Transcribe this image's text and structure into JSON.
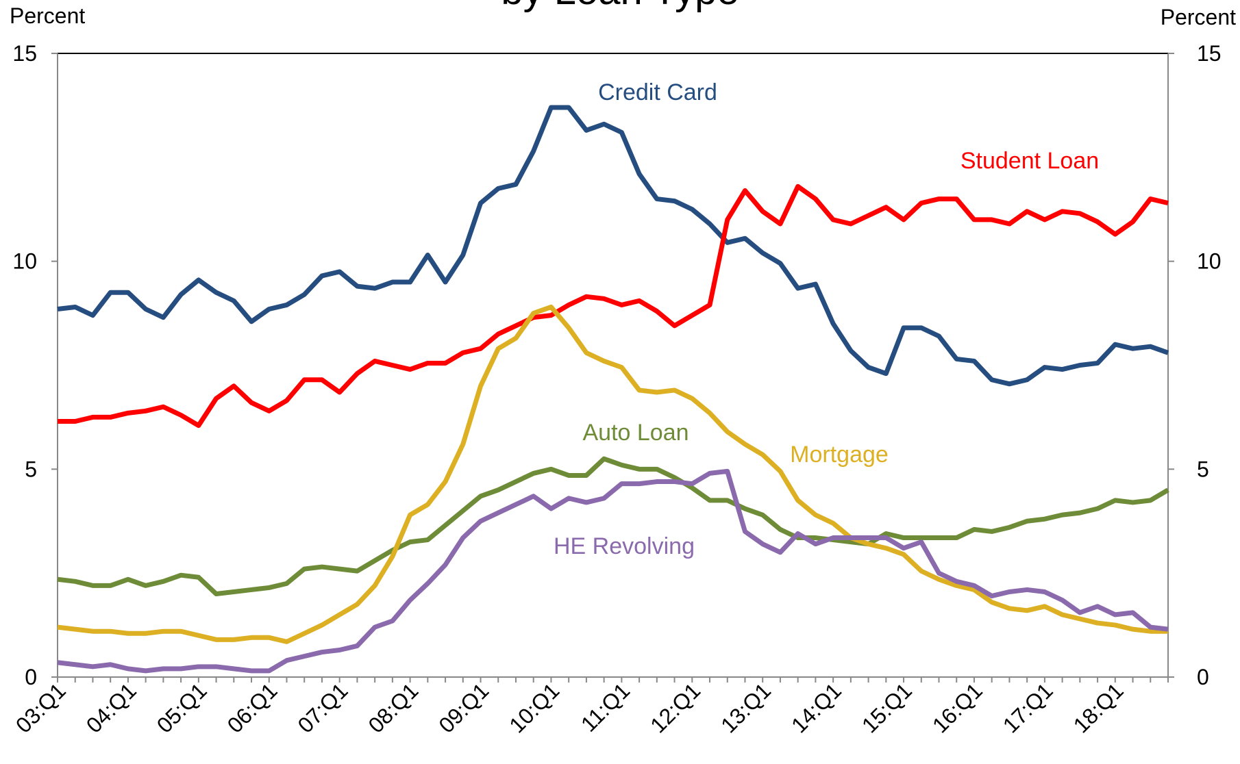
{
  "chart_data": {
    "type": "line",
    "title": "by Loan Type",
    "y_label": "Percent",
    "y2_label": "Percent",
    "categories": [
      "03:Q1",
      null,
      null,
      null,
      "04:Q1",
      null,
      null,
      null,
      "05:Q1",
      null,
      null,
      null,
      "06:Q1",
      null,
      null,
      null,
      "07:Q1",
      null,
      null,
      null,
      "08:Q1",
      null,
      null,
      null,
      "09:Q1",
      null,
      null,
      null,
      "10:Q1",
      null,
      null,
      null,
      "11:Q1",
      null,
      null,
      null,
      "12:Q1",
      null,
      null,
      null,
      "13:Q1",
      null,
      null,
      null,
      "14:Q1",
      null,
      null,
      null,
      "15:Q1",
      null,
      null,
      null,
      "16:Q1",
      null,
      null,
      null,
      "17:Q1",
      null,
      null,
      null,
      "18:Q1",
      null,
      null,
      null
    ],
    "ylim": [
      0,
      15
    ],
    "yticks": [
      0,
      5,
      10,
      15
    ],
    "y2lim": [
      0,
      15
    ],
    "y2ticks": [
      0,
      5,
      10,
      15
    ],
    "grid": false,
    "series": [
      {
        "name": "Credit Card",
        "color": "#254d80",
        "values": [
          8.85,
          8.9,
          8.7,
          9.25,
          9.25,
          8.85,
          8.65,
          9.2,
          9.55,
          9.25,
          9.05,
          8.55,
          8.85,
          8.95,
          9.2,
          9.65,
          9.75,
          9.4,
          9.35,
          9.5,
          9.5,
          10.15,
          9.5,
          10.15,
          11.4,
          11.75,
          11.85,
          12.65,
          13.7,
          13.7,
          13.15,
          13.3,
          13.1,
          12.1,
          11.5,
          11.45,
          11.25,
          10.9,
          10.45,
          10.55,
          10.2,
          9.95,
          9.35,
          9.45,
          8.5,
          7.85,
          7.45,
          7.3,
          8.4,
          8.4,
          8.2,
          7.65,
          7.6,
          7.15,
          7.05,
          7.15,
          7.45,
          7.4,
          7.5,
          7.55,
          8.0,
          7.9,
          7.95,
          7.8
        ]
      },
      {
        "name": "Student Loan",
        "color": "#ff0000",
        "values": [
          6.15,
          6.15,
          6.25,
          6.25,
          6.35,
          6.4,
          6.5,
          6.3,
          6.05,
          6.7,
          7.0,
          6.6,
          6.4,
          6.65,
          7.15,
          7.15,
          6.85,
          7.3,
          7.6,
          7.5,
          7.4,
          7.55,
          7.55,
          7.8,
          7.9,
          8.25,
          8.45,
          8.65,
          8.7,
          8.95,
          9.15,
          9.1,
          8.95,
          9.05,
          8.8,
          8.45,
          8.7,
          8.95,
          11.0,
          11.7,
          11.2,
          10.9,
          11.8,
          11.5,
          11.0,
          10.9,
          11.1,
          11.3,
          11.0,
          11.4,
          11.5,
          11.5,
          11.0,
          11.0,
          10.9,
          11.2,
          11.0,
          11.2,
          11.15,
          10.95,
          10.65,
          10.95,
          11.5,
          11.4
        ]
      },
      {
        "name": "Auto Loan",
        "color": "#6e8b37",
        "values": [
          2.35,
          2.3,
          2.2,
          2.2,
          2.35,
          2.2,
          2.3,
          2.45,
          2.4,
          2.0,
          2.05,
          2.1,
          2.15,
          2.25,
          2.6,
          2.65,
          2.6,
          2.55,
          2.8,
          3.05,
          3.25,
          3.3,
          3.65,
          4.0,
          4.35,
          4.5,
          4.7,
          4.9,
          5.0,
          4.85,
          4.85,
          5.25,
          5.1,
          5.0,
          5.0,
          4.8,
          4.55,
          4.25,
          4.25,
          4.05,
          3.9,
          3.55,
          3.35,
          3.35,
          3.3,
          3.25,
          3.2,
          3.45,
          3.35,
          3.35,
          3.35,
          3.35,
          3.55,
          3.5,
          3.6,
          3.75,
          3.8,
          3.9,
          3.95,
          4.05,
          4.25,
          4.2,
          4.25,
          4.5
        ]
      },
      {
        "name": "Mortgage",
        "color": "#dcb022",
        "values": [
          1.2,
          1.15,
          1.1,
          1.1,
          1.05,
          1.05,
          1.1,
          1.1,
          1.0,
          0.9,
          0.9,
          0.95,
          0.95,
          0.85,
          1.05,
          1.25,
          1.5,
          1.75,
          2.2,
          2.9,
          3.9,
          4.15,
          4.7,
          5.6,
          7.0,
          7.9,
          8.15,
          8.75,
          8.9,
          8.4,
          7.8,
          7.6,
          7.45,
          6.9,
          6.85,
          6.9,
          6.7,
          6.35,
          5.9,
          5.6,
          5.35,
          4.95,
          4.25,
          3.9,
          3.7,
          3.35,
          3.2,
          3.1,
          2.95,
          2.55,
          2.35,
          2.2,
          2.1,
          1.8,
          1.65,
          1.6,
          1.7,
          1.5,
          1.4,
          1.3,
          1.25,
          1.15,
          1.1,
          1.1
        ]
      },
      {
        "name": "HE Revolving",
        "color": "#8a6aac",
        "values": [
          0.35,
          0.3,
          0.25,
          0.3,
          0.2,
          0.15,
          0.2,
          0.2,
          0.25,
          0.25,
          0.2,
          0.15,
          0.15,
          0.4,
          0.5,
          0.6,
          0.65,
          0.75,
          1.2,
          1.35,
          1.85,
          2.25,
          2.7,
          3.35,
          3.75,
          3.95,
          4.15,
          4.35,
          4.05,
          4.3,
          4.2,
          4.3,
          4.65,
          4.65,
          4.7,
          4.7,
          4.65,
          4.9,
          4.95,
          3.5,
          3.2,
          3.0,
          3.45,
          3.2,
          3.35,
          3.35,
          3.35,
          3.35,
          3.1,
          3.25,
          2.5,
          2.3,
          2.2,
          1.95,
          2.05,
          2.1,
          2.05,
          1.85,
          1.55,
          1.7,
          1.5,
          1.55,
          1.2,
          1.15
        ]
      }
    ]
  }
}
